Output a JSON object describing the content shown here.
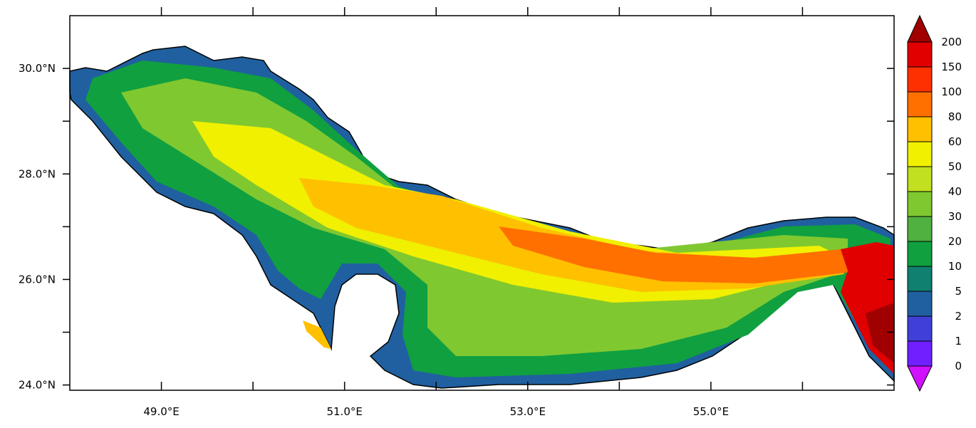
{
  "chart_data": {
    "type": "heatmap",
    "map_region": "Persian Gulf",
    "x_ticks": [
      "49.0°E",
      "51.0°E",
      "53.0°E",
      "55.0°E"
    ],
    "x_tick_values": [
      49,
      51,
      53,
      55
    ],
    "y_ticks": [
      "30.0°N",
      "28.0°N",
      "26.0°N",
      "24.0°N"
    ],
    "y_tick_values": [
      30,
      28,
      26,
      24
    ],
    "xlim": [
      48.0,
      57.0
    ],
    "ylim": [
      23.9,
      31.0
    ],
    "colorbar": {
      "levels": [
        "0",
        "1",
        "2",
        "5",
        "10",
        "20",
        "30",
        "40",
        "50",
        "60",
        "80",
        "100",
        "150",
        "200"
      ],
      "colors": [
        "#d010ff",
        "#7020ff",
        "#4040d8",
        "#2060a0",
        "#108070",
        "#10a040",
        "#50b040",
        "#80c830",
        "#c0e020",
        "#f0f000",
        "#ffc000",
        "#ff7000",
        "#ff3000",
        "#e00000",
        "#a00000"
      ],
      "extend": "both",
      "placement": "right"
    }
  }
}
